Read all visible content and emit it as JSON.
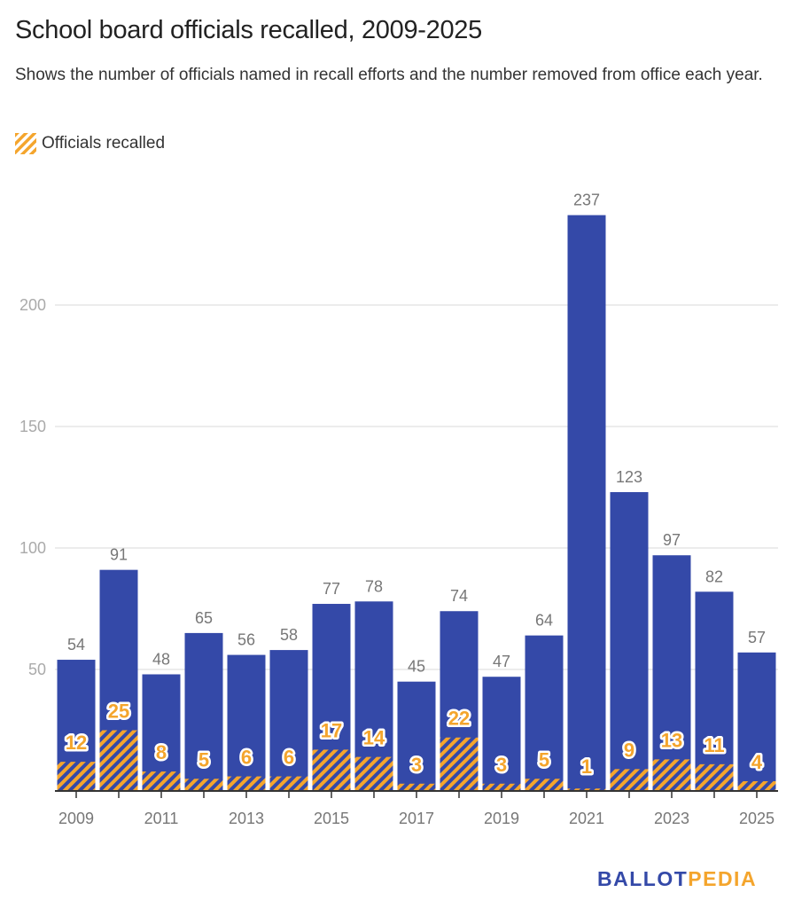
{
  "title": "School board officials recalled, 2009-2025",
  "subtitle": "Shows the number of officials named in recall efforts and the number removed from office each year.",
  "legend": {
    "label": "Officials recalled"
  },
  "logo": {
    "part1": "BALLOT",
    "part2": "PEDIA"
  },
  "colors": {
    "bar": "#3449a8",
    "recalled": "#f4a52d",
    "grid": "#e6e6e6",
    "axis": "#333333"
  },
  "chart_data": {
    "type": "bar",
    "title": "School board officials recalled, 2009-2025",
    "xlabel": "",
    "ylabel": "",
    "ylim": [
      0,
      250
    ],
    "yticks": [
      50,
      100,
      150,
      200
    ],
    "xtick_labels": [
      "2009",
      "2011",
      "2013",
      "2015",
      "2017",
      "2019",
      "2021",
      "2023",
      "2025"
    ],
    "grid": true,
    "legend_position": "top-left",
    "categories": [
      "2009",
      "2010",
      "2011",
      "2012",
      "2013",
      "2014",
      "2015",
      "2016",
      "2017",
      "2018",
      "2019",
      "2020",
      "2021",
      "2022",
      "2023",
      "2024",
      "2025"
    ],
    "series": [
      {
        "name": "Officials named in recall efforts",
        "values": [
          54,
          91,
          48,
          65,
          56,
          58,
          77,
          78,
          45,
          74,
          47,
          64,
          237,
          123,
          97,
          82,
          57
        ]
      },
      {
        "name": "Officials recalled",
        "values": [
          12,
          25,
          8,
          5,
          6,
          6,
          17,
          14,
          3,
          22,
          3,
          5,
          1,
          9,
          13,
          11,
          4
        ]
      }
    ]
  }
}
